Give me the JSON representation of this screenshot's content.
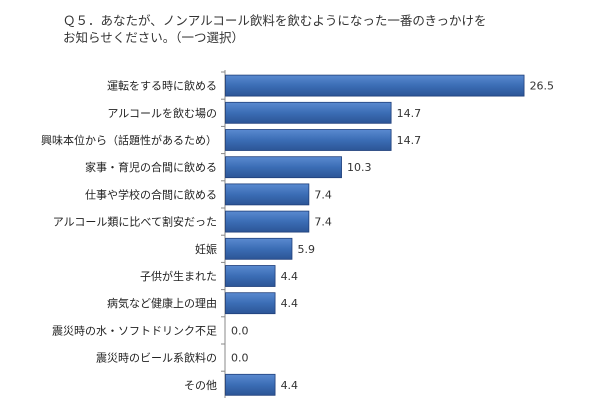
{
  "chart_data": {
    "type": "bar",
    "orientation": "horizontal",
    "title": "Ｑ５．あなたが、ノンアルコール飲料を飲むようになった一番のきっかけを\nお知らせください。（一つ選択）",
    "categories": [
      "運転をする時に飲める",
      "アルコールを飲む場の",
      "興味本位から（話題性があるため）",
      "家事・育児の合間に飲める",
      "仕事や学校の合間に飲める",
      "アルコール類に比べて割安だった",
      "妊娠",
      "子供が生まれた",
      "病気など健康上の理由",
      "震災時の水・ソフトドリンク不足",
      "震災時のビール系飲料の",
      "その他"
    ],
    "values": [
      26.5,
      14.7,
      14.7,
      10.3,
      7.4,
      7.4,
      5.9,
      4.4,
      4.4,
      0.0,
      0.0,
      4.4
    ],
    "value_labels": [
      "26.5",
      "14.7",
      "14.7",
      "10.3",
      "7.4",
      "7.4",
      "5.9",
      "4.4",
      "4.4",
      "0.0",
      "0.0",
      "4.4"
    ],
    "xlim": [
      0,
      30
    ],
    "grid": false,
    "bar_color": "#3b6db5",
    "bar_edge_color": "#1f3f7a"
  }
}
